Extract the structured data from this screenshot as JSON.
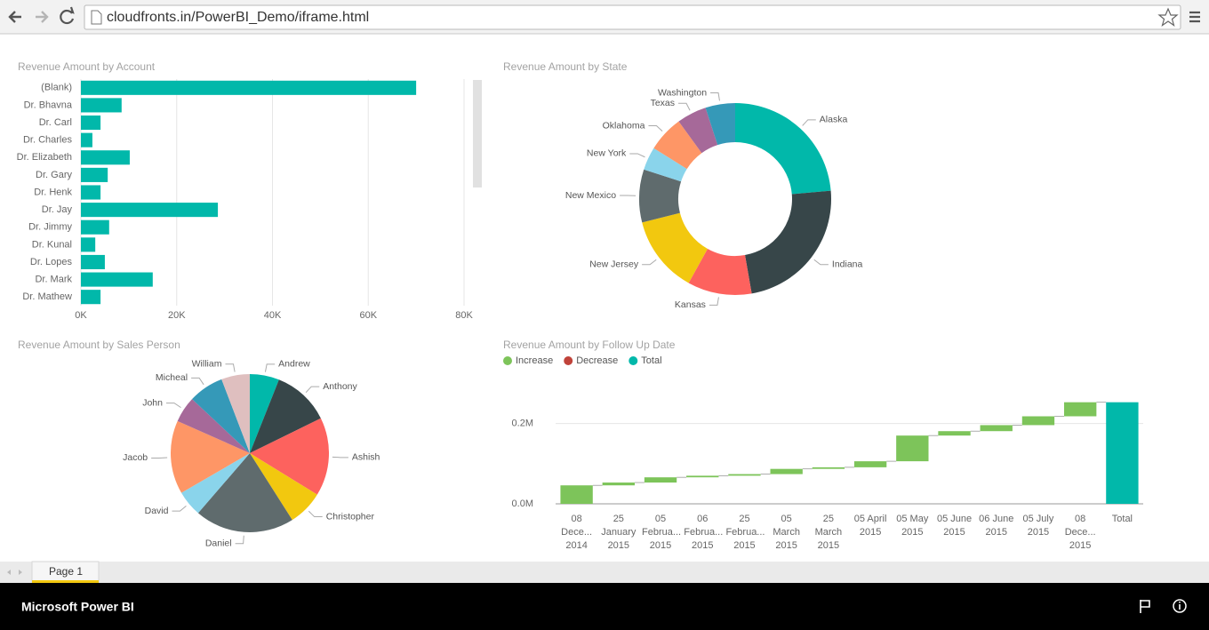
{
  "browser": {
    "url": "cloudfronts.in/PowerBI_Demo/iframe.html"
  },
  "chart_data": [
    {
      "type": "bar",
      "title": "Revenue Amount by Account",
      "categories": [
        "(Blank)",
        "Dr. Bhavna",
        "Dr. Carl",
        "Dr. Charles",
        "Dr. Elizabeth",
        "Dr. Gary",
        "Dr. Henk",
        "Dr. Jay",
        "Dr. Jimmy",
        "Dr. Kunal",
        "Dr. Lopes",
        "Dr. Mark",
        "Dr. Mathew"
      ],
      "values": [
        70000,
        8500,
        4100,
        2400,
        10200,
        5600,
        4100,
        28600,
        5900,
        3000,
        5000,
        15000,
        4100
      ],
      "color": "#01B8AA",
      "xlim": [
        0,
        80000
      ],
      "xticks": [
        {
          "value": 0,
          "label": "0K"
        },
        {
          "value": 20000,
          "label": "20K"
        },
        {
          "value": 40000,
          "label": "40K"
        },
        {
          "value": 60000,
          "label": "60K"
        },
        {
          "value": 80000,
          "label": "80K"
        }
      ],
      "grid": true
    },
    {
      "type": "donut",
      "title": "Revenue Amount by State",
      "categories": [
        "Alaska",
        "Indiana",
        "Kansas",
        "New Jersey",
        "New Mexico",
        "New York",
        "Oklahoma",
        "Texas",
        "Washington"
      ],
      "values": [
        23.6,
        23.6,
        10.8,
        13,
        8.9,
        3.9,
        6.1,
        5,
        5
      ],
      "colors": [
        "#01B8AA",
        "#374649",
        "#FD625E",
        "#F2C80F",
        "#5F6B6D",
        "#8AD4EB",
        "#FE9666",
        "#A66999",
        "#3599B8"
      ]
    },
    {
      "type": "pie",
      "title": "Revenue Amount by Sales Person",
      "categories": [
        "Andrew",
        "Anthony",
        "Ashish",
        "Christopher",
        "Daniel",
        "David",
        "Jacob",
        "John",
        "Micheal",
        "William"
      ],
      "values": [
        6,
        11.7,
        16,
        7.2,
        20.3,
        5.3,
        15,
        5.3,
        7.2,
        5.8
      ],
      "colors": [
        "#01B8AA",
        "#374649",
        "#FD625E",
        "#F2C80F",
        "#5F6B6D",
        "#8AD4EB",
        "#FE9666",
        "#A66999",
        "#3599B8",
        "#DFBFBF"
      ]
    },
    {
      "type": "waterfall",
      "title": "Revenue Amount by Follow Up Date",
      "categories": [
        "08 Dece... 2014",
        "25 January 2015",
        "05 Februa... 2015",
        "06 Februa... 2015",
        "25 Februa... 2015",
        "05 March 2015",
        "25 March 2015",
        "05 April 2015",
        "05 May 2015",
        "05 June 2015",
        "06 June 2015",
        "05 July 2015",
        "08 Dece... 2015",
        "Total"
      ],
      "series": [
        {
          "name": "Increase",
          "color": "#7DC45A",
          "values": [
            46000,
            7000,
            13000,
            4000,
            4000,
            13000,
            4000,
            15000,
            64000,
            11000,
            15000,
            22000,
            35000,
            null
          ]
        },
        {
          "name": "Decrease",
          "color": "#C0433A",
          "values": [
            null,
            null,
            null,
            null,
            null,
            null,
            null,
            null,
            null,
            null,
            null,
            null,
            null,
            null
          ]
        },
        {
          "name": "Total",
          "color": "#01B8AA",
          "values": [
            null,
            null,
            null,
            null,
            null,
            null,
            null,
            null,
            null,
            null,
            null,
            null,
            null,
            253000
          ]
        }
      ],
      "ylim": [
        0,
        270000
      ],
      "yticks": [
        {
          "value": 0,
          "label": "0.0M"
        },
        {
          "value": 200000,
          "label": "0.2M"
        }
      ],
      "grid": true
    }
  ],
  "report": {
    "tabs": [
      "Page 1"
    ]
  },
  "footer": {
    "brand": "Microsoft Power BI"
  }
}
